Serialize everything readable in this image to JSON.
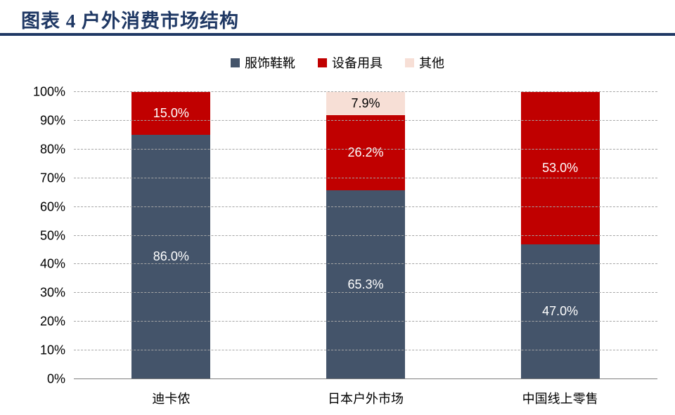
{
  "header": {
    "title": "图表 4  户外消费市场结构"
  },
  "chart_data": {
    "type": "bar",
    "subtype": "stacked-column-100",
    "title": "图表 4  户外消费市场结构",
    "categories": [
      "迪卡侬",
      "日本户外市场",
      "中国线上零售"
    ],
    "series": [
      {
        "name": "服饰鞋靴",
        "color": "#44546A",
        "label_color": "#FFFFFF",
        "values": [
          86.0,
          65.3,
          47.0
        ],
        "labels": [
          "86.0%",
          "65.3%",
          "47.0%"
        ]
      },
      {
        "name": "设备用具",
        "color": "#C00000",
        "label_color": "#FFFFFF",
        "values": [
          15.0,
          26.2,
          53.0
        ],
        "labels": [
          "15.0%",
          "26.2%",
          "53.0%"
        ]
      },
      {
        "name": "其他",
        "color": "#F7DFD6",
        "label_color": "#000000",
        "values": [
          null,
          7.9,
          null
        ],
        "labels": [
          null,
          "7.9%",
          null
        ]
      }
    ],
    "y_ticks": [
      "0%",
      "10%",
      "20%",
      "30%",
      "40%",
      "50%",
      "60%",
      "70%",
      "80%",
      "90%",
      "100%"
    ],
    "ylim": [
      0,
      100
    ],
    "grid": "dashed-horizontal",
    "legend_position": "top"
  },
  "colors": {
    "title": "#1F3864",
    "rule": "#1F3864",
    "gridline": "#A6A6A6",
    "axis_line": "#7F7F7F"
  }
}
